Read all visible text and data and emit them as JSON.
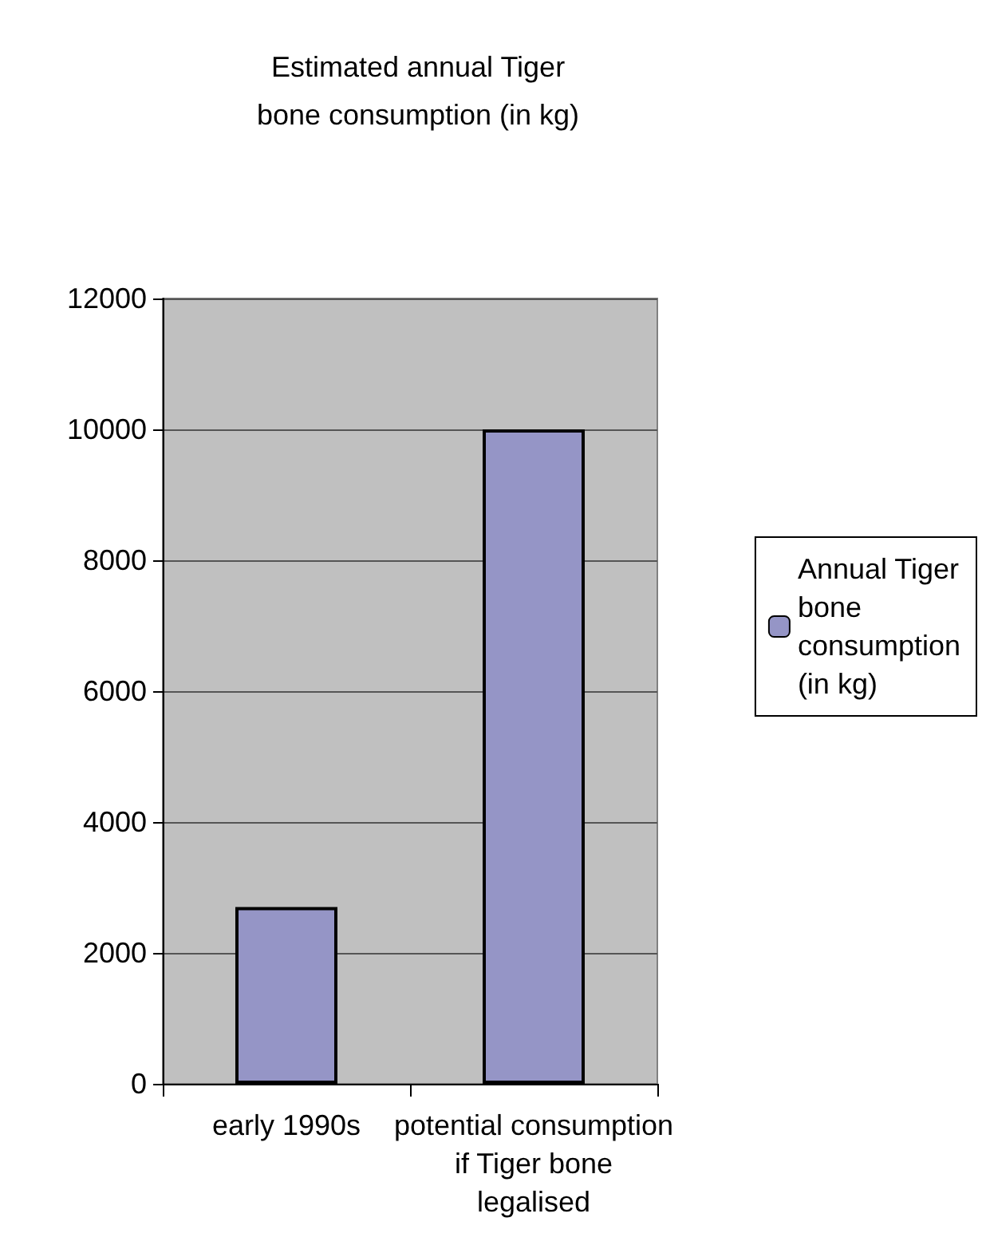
{
  "chart_data": {
    "type": "bar",
    "title": "Estimated annual Tiger\nbone consumption (in kg)",
    "categories": [
      "early 1990s",
      "potential consumption\nif Tiger bone\nlegalised"
    ],
    "series": [
      {
        "name": "Annual Tiger\nbone\nconsumption\n(in kg)",
        "color": "#9595c6",
        "values": [
          2700,
          10000
        ]
      }
    ],
    "ylim": [
      0,
      12000
    ],
    "yticks": [
      0,
      2000,
      4000,
      6000,
      8000,
      10000,
      12000
    ],
    "grid": "y",
    "legend": "right"
  }
}
